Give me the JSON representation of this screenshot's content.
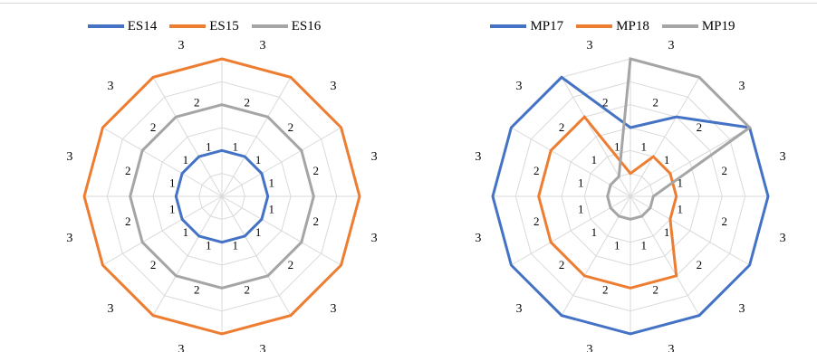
{
  "chart_data": [
    {
      "type": "radar",
      "categories": [
        "3",
        "3",
        "3",
        "3",
        "3",
        "3",
        "3",
        "3",
        "3",
        "3",
        "3",
        "3"
      ],
      "rlim": [
        0,
        3
      ],
      "ring_ticks": [
        "1",
        "2",
        "3"
      ],
      "grid": true,
      "legend_position": "top",
      "series": [
        {
          "name": "ES14",
          "color": "#4472c4",
          "values": [
            1,
            1,
            1,
            1,
            1,
            1,
            1,
            1,
            1,
            1,
            1,
            1
          ]
        },
        {
          "name": "ES15",
          "color": "#ed7d31",
          "values": [
            3,
            3,
            3,
            3,
            3,
            3,
            3,
            3,
            3,
            3,
            3,
            3
          ]
        },
        {
          "name": "ES16",
          "color": "#a5a5a5",
          "values": [
            2,
            2,
            2,
            2,
            2,
            2,
            2,
            2,
            2,
            2,
            2,
            2
          ]
        }
      ]
    },
    {
      "type": "radar",
      "categories": [
        "3",
        "3",
        "3",
        "3",
        "3",
        "3",
        "3",
        "3",
        "3",
        "3",
        "3",
        "3"
      ],
      "rlim": [
        0,
        3
      ],
      "ring_ticks": [
        "1",
        "2",
        "3"
      ],
      "grid": true,
      "legend_position": "top",
      "series": [
        {
          "name": "MP17",
          "color": "#4472c4",
          "values": [
            1.5,
            2,
            3,
            3,
            3,
            3,
            3,
            3,
            3,
            3,
            3,
            3
          ]
        },
        {
          "name": "MP18",
          "color": "#ed7d31",
          "values": [
            0.5,
            1,
            1,
            1,
            1,
            2,
            2,
            2,
            2,
            2,
            2,
            2
          ]
        },
        {
          "name": "MP19",
          "color": "#a5a5a5",
          "values": [
            3,
            3,
            3,
            0.5,
            0.5,
            0.5,
            0.5,
            0.5,
            0.5,
            0.5,
            0.5,
            0.5
          ]
        }
      ]
    }
  ]
}
